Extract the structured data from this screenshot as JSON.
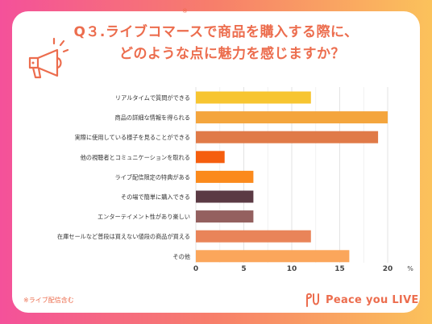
{
  "header": {
    "note_mark": "※",
    "title_line1": "Q３.ライブコマースで商品を購入する際に、",
    "title_line2": "どのような点に魅力を感じますか？"
  },
  "footer": {
    "footnote": "※ライブ配信含む",
    "brand": "Peace you LIVE"
  },
  "chart_data": {
    "type": "bar",
    "orientation": "horizontal",
    "categories": [
      "リアルタイムで質問ができる",
      "商品の詳細な情報を得られる",
      "実際に使用している様子を見ることができる",
      "他の視聴者とコミュニケーションを取れる",
      "ライブ配信限定の特典がある",
      "その場で簡単に購入できる",
      "エンターテイメント性があり楽しい",
      "在庫セールなど普段は買えない値段の商品が買える",
      "その他"
    ],
    "values": [
      12,
      20,
      19,
      3,
      6,
      6,
      6,
      12,
      16
    ],
    "colors": [
      "#f7c531",
      "#f4a53d",
      "#e07a48",
      "#f55e0e",
      "#fb8a1c",
      "#5b3a44",
      "#94605f",
      "#e98459",
      "#fba65b"
    ],
    "xlim": [
      0,
      22
    ],
    "xticks": [
      0,
      5,
      10,
      15,
      20
    ],
    "xunit": "%",
    "grid": true
  }
}
